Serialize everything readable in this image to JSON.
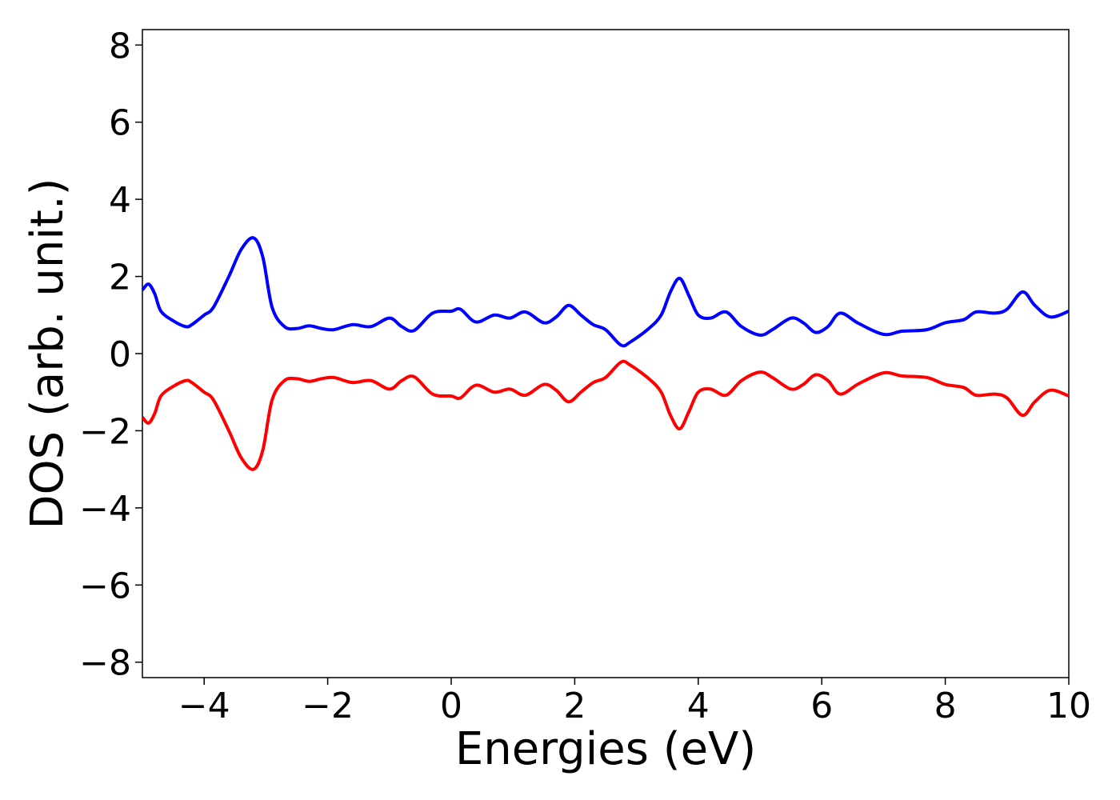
{
  "chart_data": {
    "type": "line",
    "title": "",
    "xlabel": "Energies (eV)",
    "ylabel": "DOS (arb. unit.)",
    "xlim": [
      -5,
      10
    ],
    "ylim": [
      -8.4,
      8.4
    ],
    "xticks": [
      -4,
      -2,
      0,
      2,
      4,
      6,
      8,
      10
    ],
    "yticks": [
      -8,
      -6,
      -4,
      -2,
      0,
      2,
      4,
      6,
      8
    ],
    "xtick_labels": [
      "−4",
      "−2",
      "0",
      "2",
      "4",
      "6",
      "8",
      "10"
    ],
    "ytick_labels": [
      "−8",
      "−6",
      "−4",
      "−2",
      "0",
      "2",
      "4",
      "6",
      "8"
    ],
    "grid": false,
    "legend": "none",
    "mirror_series": true,
    "series": [
      {
        "color": "#0000ff",
        "points": [
          [
            -5.0,
            1.65
          ],
          [
            -4.9,
            1.8
          ],
          [
            -4.8,
            1.55
          ],
          [
            -4.7,
            1.1
          ],
          [
            -4.5,
            0.85
          ],
          [
            -4.3,
            0.7
          ],
          [
            -4.2,
            0.75
          ],
          [
            -4.0,
            1.0
          ],
          [
            -3.85,
            1.2
          ],
          [
            -3.6,
            2.0
          ],
          [
            -3.4,
            2.7
          ],
          [
            -3.2,
            3.0
          ],
          [
            -3.05,
            2.5
          ],
          [
            -2.9,
            1.2
          ],
          [
            -2.7,
            0.7
          ],
          [
            -2.5,
            0.65
          ],
          [
            -2.3,
            0.72
          ],
          [
            -2.1,
            0.65
          ],
          [
            -1.9,
            0.62
          ],
          [
            -1.6,
            0.75
          ],
          [
            -1.3,
            0.7
          ],
          [
            -1.0,
            0.92
          ],
          [
            -0.8,
            0.7
          ],
          [
            -0.6,
            0.6
          ],
          [
            -0.3,
            1.05
          ],
          [
            0.0,
            1.1
          ],
          [
            0.15,
            1.15
          ],
          [
            0.4,
            0.82
          ],
          [
            0.7,
            1.0
          ],
          [
            0.95,
            0.92
          ],
          [
            1.2,
            1.08
          ],
          [
            1.5,
            0.8
          ],
          [
            1.7,
            0.95
          ],
          [
            1.9,
            1.25
          ],
          [
            2.1,
            1.0
          ],
          [
            2.3,
            0.75
          ],
          [
            2.5,
            0.62
          ],
          [
            2.75,
            0.22
          ],
          [
            2.9,
            0.3
          ],
          [
            3.2,
            0.65
          ],
          [
            3.4,
            1.0
          ],
          [
            3.55,
            1.6
          ],
          [
            3.7,
            1.95
          ],
          [
            3.85,
            1.5
          ],
          [
            4.0,
            1.0
          ],
          [
            4.2,
            0.92
          ],
          [
            4.45,
            1.08
          ],
          [
            4.7,
            0.7
          ],
          [
            5.0,
            0.48
          ],
          [
            5.2,
            0.62
          ],
          [
            5.5,
            0.92
          ],
          [
            5.7,
            0.8
          ],
          [
            5.9,
            0.55
          ],
          [
            6.1,
            0.7
          ],
          [
            6.3,
            1.05
          ],
          [
            6.6,
            0.78
          ],
          [
            7.0,
            0.5
          ],
          [
            7.3,
            0.58
          ],
          [
            7.7,
            0.62
          ],
          [
            8.0,
            0.8
          ],
          [
            8.3,
            0.88
          ],
          [
            8.5,
            1.08
          ],
          [
            8.8,
            1.05
          ],
          [
            9.0,
            1.15
          ],
          [
            9.25,
            1.6
          ],
          [
            9.45,
            1.25
          ],
          [
            9.7,
            0.95
          ],
          [
            10.0,
            1.1
          ]
        ]
      },
      {
        "color": "#ff0000",
        "points": []
      }
    ]
  }
}
